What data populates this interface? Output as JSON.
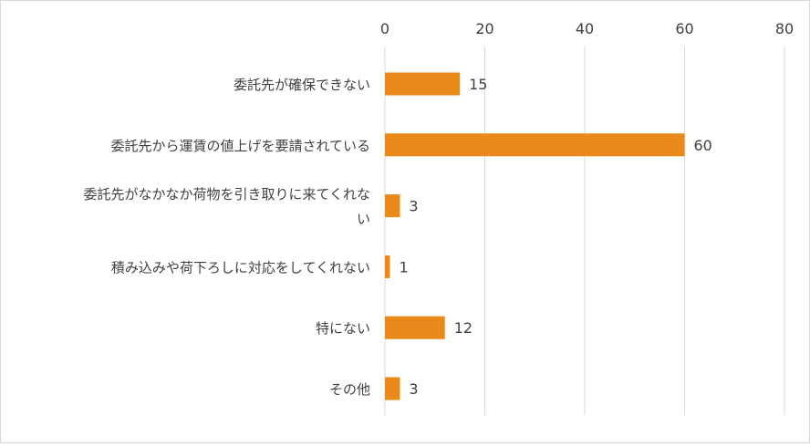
{
  "chart_data": {
    "type": "bar",
    "orientation": "horizontal",
    "categories": [
      "委託先が確保できない",
      "委託先から運賃の値上げを要請されている",
      "委託先がなかなか荷物を引き取りに来てくれない",
      "積み込みや荷下ろしに対応をしてくれない",
      "特にない",
      "その他"
    ],
    "category_lines": [
      [
        "委託先が確保できない"
      ],
      [
        "委託先から運賃の値上げを要請されている"
      ],
      [
        "委託先がなかなか荷物を引き取りに来てくれな",
        "い"
      ],
      [
        "積み込みや荷下ろしに対応をしてくれない"
      ],
      [
        "特にない"
      ],
      [
        "その他"
      ]
    ],
    "values": [
      15,
      60,
      3,
      1,
      12,
      3
    ],
    "xlim": [
      0,
      80
    ],
    "xticks": [
      0,
      20,
      40,
      60,
      80
    ],
    "x_axis_position": "top",
    "grid": true,
    "data_labels": true,
    "legend": "none",
    "title": "",
    "xlabel": "",
    "ylabel": "",
    "colors": {
      "bar": "#E8891A",
      "grid": "#d9d9d9",
      "text": "#404040",
      "border": "#d9d9d9"
    }
  }
}
